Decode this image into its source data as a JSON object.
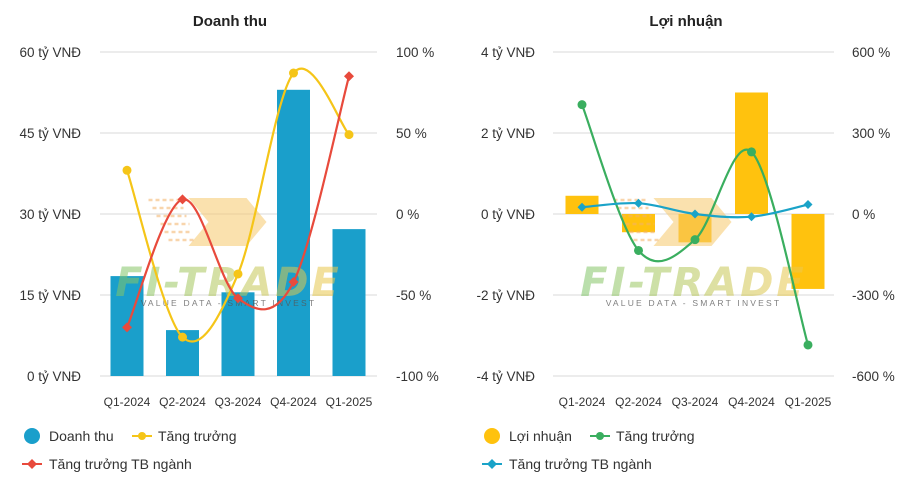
{
  "chart_data": [
    {
      "type": "bar",
      "title": "Doanh thu",
      "categories": [
        "Q1-2024",
        "Q2-2024",
        "Q3-2024",
        "Q4-2024",
        "Q1-2025"
      ],
      "left_axis": {
        "ticks": [
          "0 tỷ VNĐ",
          "15 tỷ VNĐ",
          "30 tỷ VNĐ",
          "45 tỷ VNĐ",
          "60 tỷ VNĐ"
        ],
        "range": [
          0,
          60
        ]
      },
      "right_axis": {
        "ticks": [
          "-100 %",
          "-50 %",
          "0 %",
          "50 %",
          "100 %"
        ],
        "range": [
          -100,
          100
        ]
      },
      "bar_series": {
        "name": "Doanh thu",
        "color": "#1a9fcb",
        "values": [
          18.5,
          8.5,
          15.5,
          53,
          27.2
        ]
      },
      "line_series": [
        {
          "name": "Tăng trưởng",
          "color": "#f5c518",
          "values": [
            27,
            -76,
            -37,
            87,
            49
          ]
        },
        {
          "name": "Tăng trưởng TB ngành",
          "color": "#e84a3c",
          "values": [
            -70,
            9,
            -52,
            -42,
            85
          ]
        }
      ],
      "grid": true,
      "legend_position": "bottom-left"
    },
    {
      "type": "bar",
      "title": "Lợi nhuận",
      "categories": [
        "Q1-2024",
        "Q2-2024",
        "Q3-2024",
        "Q4-2024",
        "Q1-2025"
      ],
      "left_axis": {
        "ticks": [
          "-4 tỷ VNĐ",
          "-2 tỷ VNĐ",
          "0 tỷ VNĐ",
          "2 tỷ VNĐ",
          "4 tỷ VNĐ"
        ],
        "range": [
          -4,
          4
        ]
      },
      "right_axis": {
        "ticks": [
          "-600 %",
          "-300 %",
          "0 %",
          "300 %",
          "600 %"
        ],
        "range": [
          -600,
          600
        ]
      },
      "bar_series": {
        "name": "Lợi nhuận",
        "color": "#ffc20e",
        "values": [
          0.45,
          -0.45,
          -0.7,
          3,
          -1.85
        ]
      },
      "line_series": [
        {
          "name": "Tăng trưởng",
          "color": "#3aae5f",
          "values": [
            405,
            -135,
            -95,
            230,
            -485
          ]
        },
        {
          "name": "Tăng trưởng TB ngành",
          "color": "#1aa3c8",
          "values": [
            25,
            40,
            0,
            -10,
            35
          ]
        }
      ],
      "grid": true,
      "legend_position": "bottom-left"
    }
  ],
  "watermark": {
    "brand": "FI-TRADE",
    "tagline": "VALUE DATA - SMART INVEST"
  }
}
